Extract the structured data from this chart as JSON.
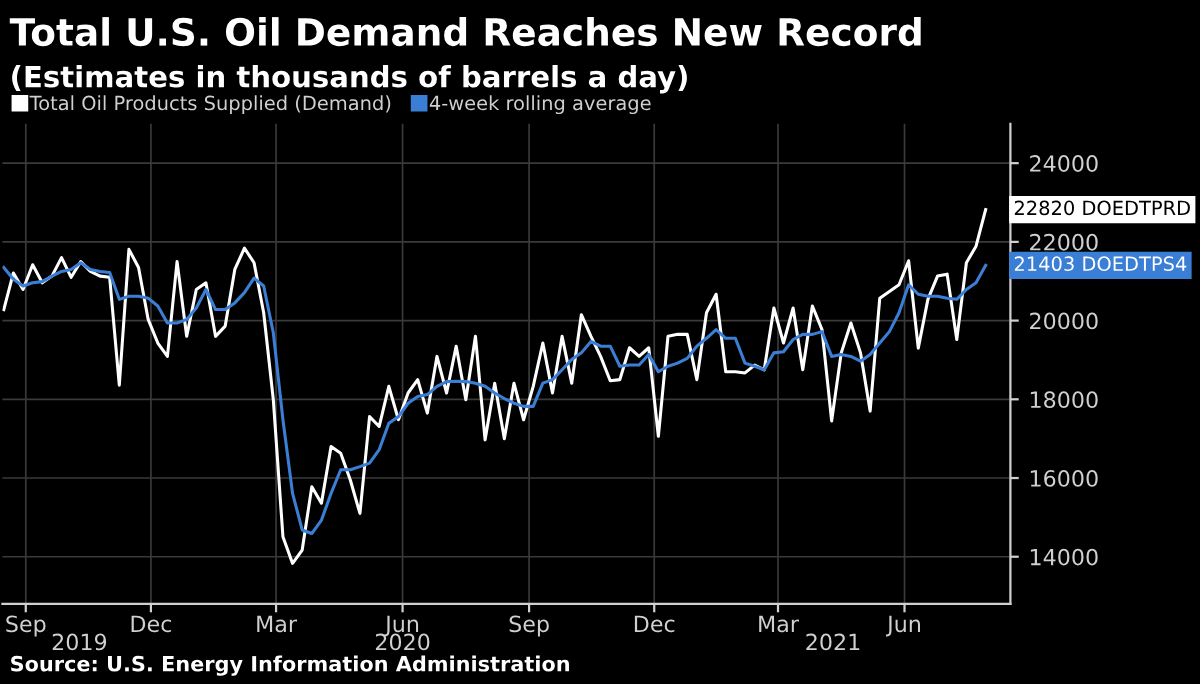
{
  "chart_data": {
    "type": "line",
    "title": "Total U.S. Oil Demand Reaches New Record",
    "subtitle": "(Estimates in thousands of barrels a day)",
    "x": [
      "2019-08-30",
      "2019-09-06",
      "2019-09-13",
      "2019-09-20",
      "2019-09-27",
      "2019-10-04",
      "2019-10-11",
      "2019-10-18",
      "2019-10-25",
      "2019-11-01",
      "2019-11-08",
      "2019-11-15",
      "2019-11-22",
      "2019-11-29",
      "2019-12-06",
      "2019-12-13",
      "2019-12-20",
      "2019-12-27",
      "2020-01-03",
      "2020-01-10",
      "2020-01-17",
      "2020-01-24",
      "2020-01-31",
      "2020-02-07",
      "2020-02-14",
      "2020-02-21",
      "2020-02-28",
      "2020-03-06",
      "2020-03-13",
      "2020-03-20",
      "2020-03-27",
      "2020-04-03",
      "2020-04-10",
      "2020-04-17",
      "2020-04-24",
      "2020-05-01",
      "2020-05-08",
      "2020-05-15",
      "2020-05-22",
      "2020-05-29",
      "2020-06-05",
      "2020-06-12",
      "2020-06-19",
      "2020-06-26",
      "2020-07-03",
      "2020-07-10",
      "2020-07-17",
      "2020-07-24",
      "2020-07-31",
      "2020-08-07",
      "2020-08-14",
      "2020-08-21",
      "2020-08-28",
      "2020-09-04",
      "2020-09-11",
      "2020-09-18",
      "2020-09-25",
      "2020-10-02",
      "2020-10-09",
      "2020-10-16",
      "2020-10-23",
      "2020-10-30",
      "2020-11-06",
      "2020-11-13",
      "2020-11-20",
      "2020-11-27",
      "2020-12-04",
      "2020-12-11",
      "2020-12-18",
      "2020-12-25",
      "2021-01-01",
      "2021-01-08",
      "2021-01-15",
      "2021-01-22",
      "2021-01-29",
      "2021-02-05",
      "2021-02-12",
      "2021-02-19",
      "2021-02-26",
      "2021-03-05",
      "2021-03-12",
      "2021-03-19",
      "2021-03-26",
      "2021-04-02",
      "2021-04-09",
      "2021-04-16",
      "2021-04-23",
      "2021-04-30",
      "2021-05-07",
      "2021-05-14",
      "2021-05-21",
      "2021-05-28",
      "2021-06-04",
      "2021-06-11",
      "2021-06-18",
      "2021-06-25",
      "2021-07-02",
      "2021-07-09",
      "2021-07-16",
      "2021-07-23",
      "2021-07-30",
      "2021-08-06",
      "2021-08-13"
    ],
    "series": [
      {
        "name": "Total Oil Products Supplied (Demand)",
        "color": "#ffffff",
        "values": [
          20280,
          21210,
          20790,
          21420,
          20960,
          21130,
          21600,
          21100,
          21500,
          21250,
          21130,
          21100,
          18360,
          21810,
          21350,
          20030,
          19430,
          19090,
          21500,
          19600,
          20790,
          20960,
          19600,
          19860,
          21300,
          21840,
          21470,
          20200,
          17990,
          14510,
          13830,
          14170,
          15780,
          15360,
          16800,
          16630,
          15950,
          15100,
          17560,
          17310,
          18330,
          17480,
          18160,
          18500,
          17650,
          19090,
          18160,
          19350,
          17990,
          19600,
          16970,
          18410,
          17000,
          18410,
          17480,
          18330,
          19430,
          18160,
          19600,
          18410,
          20150,
          19600,
          19090,
          18470,
          18500,
          19310,
          19090,
          19310,
          17060,
          19600,
          19650,
          19650,
          18500,
          20200,
          20670,
          18700,
          18700,
          18670,
          18870,
          18750,
          20320,
          19430,
          20320,
          18750,
          20370,
          19770,
          17450,
          19180,
          19940,
          19180,
          17700,
          20570,
          20740,
          20910,
          21520,
          19300,
          20540,
          21130,
          21180,
          19520,
          21470,
          21890,
          22820
        ]
      },
      {
        "name": "4-week rolling average",
        "color": "#3a7fd5",
        "values": [
          21350,
          21050,
          20880,
          20960,
          20990,
          21130,
          21250,
          21300,
          21470,
          21300,
          21250,
          21220,
          20540,
          20620,
          20620,
          20570,
          20370,
          19940,
          19940,
          20030,
          20320,
          20790,
          20280,
          20280,
          20450,
          20710,
          21080,
          20880,
          19690,
          17480,
          15610,
          14680,
          14590,
          14930,
          15610,
          16210,
          16210,
          16290,
          16380,
          16720,
          17390,
          17560,
          17900,
          18070,
          18120,
          18330,
          18450,
          18460,
          18450,
          18410,
          18330,
          18160,
          18020,
          17900,
          17820,
          17820,
          18410,
          18500,
          18750,
          19010,
          19180,
          19470,
          19350,
          19350,
          18840,
          18870,
          18870,
          19140,
          18700,
          18840,
          18920,
          19040,
          19350,
          19550,
          19770,
          19550,
          19550,
          18920,
          18840,
          18750,
          19180,
          19210,
          19520,
          19650,
          19650,
          19720,
          19090,
          19140,
          19090,
          18970,
          19140,
          19430,
          19720,
          20200,
          20910,
          20670,
          20620,
          20620,
          20570,
          20540,
          20790,
          20960,
          21403
        ]
      }
    ],
    "xlim": [
      "2019-08-29",
      "2021-08-31"
    ],
    "xticks": [
      {
        "value": "2019-09-15",
        "label": "Sep"
      },
      {
        "value": "2019-12-15",
        "label": "Dec"
      },
      {
        "value": "2020-03-15",
        "label": "Mar"
      },
      {
        "value": "2020-06-15",
        "label": "Jun"
      },
      {
        "value": "2020-09-15",
        "label": "Sep"
      },
      {
        "value": "2020-12-15",
        "label": "Dec"
      },
      {
        "value": "2021-03-15",
        "label": "Mar"
      },
      {
        "value": "2021-06-15",
        "label": "Jun"
      }
    ],
    "x2lim": [
      "2019-08-29",
      "2021-08-31"
    ],
    "x2ticks": [
      {
        "value": "2019-10-24",
        "label": "2019"
      },
      {
        "value": "2020-06-15",
        "label": "2020"
      },
      {
        "value": "2021-04-24",
        "label": "2021"
      }
    ],
    "ylim": [
      12800,
      25000
    ],
    "yticks": [
      14000,
      16000,
      18000,
      20000,
      22000,
      24000
    ],
    "grid": true,
    "legend": "top left",
    "line_style": "solid",
    "annotations": [
      {
        "text": "22820 DOEDTPRD",
        "x": "2021-08-13",
        "y": 22820
      },
      {
        "text": "21403 DOEDTPS4",
        "x": "2021-08-13",
        "y": 21403
      },
      "Source: U.S. Energy Information Administration"
    ]
  }
}
